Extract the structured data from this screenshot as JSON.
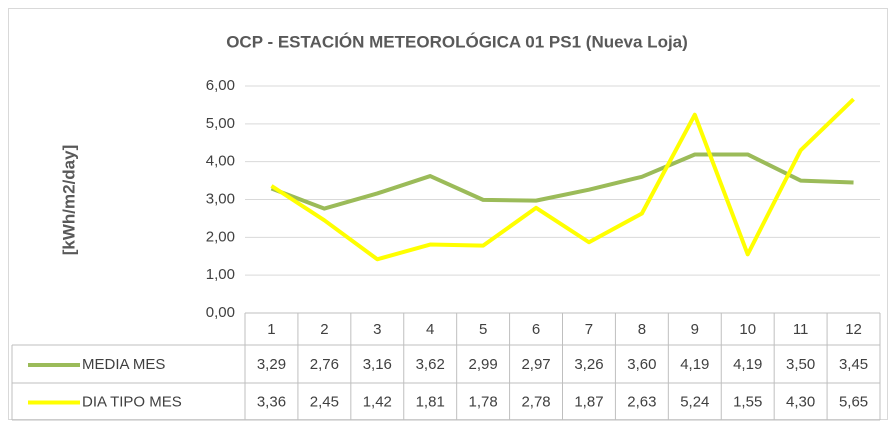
{
  "chart_data": {
    "type": "line",
    "title": "OCP - ESTACIÓN METEOROLÓGICA 01 PS1 (Nueva Loja)",
    "y_label": "[kWh/m2/day]",
    "categories": [
      "1",
      "2",
      "3",
      "4",
      "5",
      "6",
      "7",
      "8",
      "9",
      "10",
      "11",
      "12"
    ],
    "series": [
      {
        "name": "MEDIA MES",
        "color": "#9bbb59",
        "values": [
          3.29,
          2.76,
          3.16,
          3.62,
          2.99,
          2.97,
          3.26,
          3.6,
          4.19,
          4.19,
          3.5,
          3.45
        ],
        "value_labels": [
          "3,29",
          "2,76",
          "3,16",
          "3,62",
          "2,99",
          "2,97",
          "3,26",
          "3,60",
          "4,19",
          "4,19",
          "3,50",
          "3,45"
        ]
      },
      {
        "name": "DIA TIPO MES",
        "color": "#ffff00",
        "values": [
          3.36,
          2.45,
          1.42,
          1.81,
          1.78,
          2.78,
          1.87,
          2.63,
          5.24,
          1.55,
          4.3,
          5.65
        ],
        "value_labels": [
          "3,36",
          "2,45",
          "1,42",
          "1,81",
          "1,78",
          "2,78",
          "1,87",
          "2,63",
          "5,24",
          "1,55",
          "4,30",
          "5,65"
        ]
      }
    ],
    "ylim": [
      0,
      6
    ],
    "yticks": [
      {
        "value": 0,
        "label": "0,00"
      },
      {
        "value": 1,
        "label": "1,00"
      },
      {
        "value": 2,
        "label": "2,00"
      },
      {
        "value": 3,
        "label": "3,00"
      },
      {
        "value": 4,
        "label": "4,00"
      },
      {
        "value": 5,
        "label": "5,00"
      },
      {
        "value": 6,
        "label": "6,00"
      }
    ],
    "grid": true
  }
}
